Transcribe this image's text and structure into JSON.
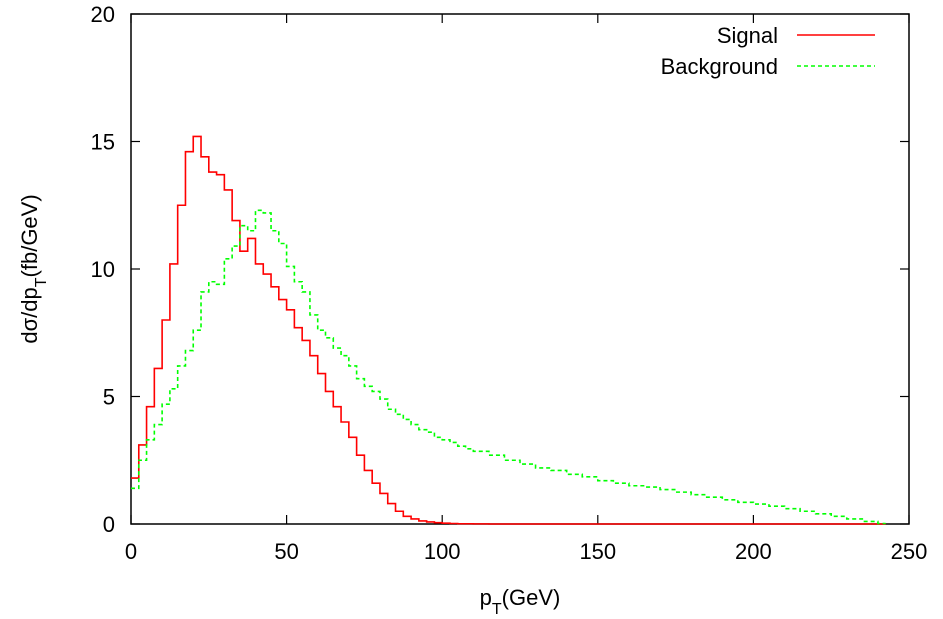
{
  "chart_data": {
    "type": "line",
    "step": true,
    "title": "",
    "xlabel": "p_T(GeV)",
    "xlabel_parts": {
      "base": "p",
      "sub": "T",
      "rest": "(GeV)"
    },
    "ylabel": "dσ/dp_T(fb/GeV)",
    "ylabel_parts": {
      "base": "dσ/dp",
      "sub": "T",
      "rest": "(fb/GeV)"
    },
    "xlim": [
      0,
      250
    ],
    "ylim": [
      0,
      20
    ],
    "xticks": [
      0,
      50,
      100,
      150,
      200,
      250
    ],
    "yticks": [
      0,
      5,
      10,
      15,
      20
    ],
    "xtick_labels": [
      "0",
      "50",
      "100",
      "150",
      "200",
      "250"
    ],
    "ytick_labels": [
      "0",
      "5",
      "10",
      "15",
      "20"
    ],
    "grid": false,
    "legend_position": "top-right",
    "bin_width": 2.5,
    "series": [
      {
        "name": "Signal",
        "color": "#ff0000",
        "dash": "solid",
        "x": [
          0,
          2.5,
          5,
          7.5,
          10,
          12.5,
          15,
          17.5,
          20,
          22.5,
          25,
          27.5,
          30,
          32.5,
          35,
          37.5,
          40,
          42.5,
          45,
          47.5,
          50,
          52.5,
          55,
          57.5,
          60,
          62.5,
          65,
          67.5,
          70,
          72.5,
          75,
          77.5,
          80,
          82.5,
          85,
          87.5,
          90,
          92.5,
          95,
          97.5,
          100,
          102.5,
          105,
          107.5,
          110,
          115,
          120,
          130,
          140,
          150,
          160,
          170,
          180,
          190,
          200,
          210,
          220,
          230,
          240
        ],
        "values": [
          1.8,
          3.1,
          4.6,
          6.1,
          8.0,
          10.2,
          12.5,
          14.6,
          15.2,
          14.4,
          13.8,
          13.7,
          13.1,
          11.9,
          10.7,
          11.2,
          10.2,
          9.8,
          9.3,
          8.8,
          8.4,
          7.7,
          7.2,
          6.6,
          5.9,
          5.2,
          4.6,
          4.0,
          3.4,
          2.7,
          2.1,
          1.6,
          1.2,
          0.8,
          0.5,
          0.3,
          0.2,
          0.12,
          0.08,
          0.05,
          0.03,
          0.02,
          0.01,
          0.01,
          0.005,
          0,
          0,
          0,
          0,
          0,
          0,
          0,
          0,
          0,
          0,
          0,
          0,
          0,
          0
        ]
      },
      {
        "name": "Background",
        "color": "#00ff00",
        "dash": "dashed",
        "x": [
          0,
          2.5,
          5,
          7.5,
          10,
          12.5,
          15,
          17.5,
          20,
          22.5,
          25,
          27.5,
          30,
          32.5,
          35,
          37.5,
          40,
          42.5,
          45,
          47.5,
          50,
          52.5,
          55,
          57.5,
          60,
          62.5,
          65,
          67.5,
          70,
          72.5,
          75,
          77.5,
          80,
          82.5,
          85,
          87.5,
          90,
          92.5,
          95,
          97.5,
          100,
          102.5,
          105,
          107.5,
          110,
          115,
          120,
          125,
          130,
          135,
          140,
          145,
          150,
          155,
          160,
          165,
          170,
          175,
          180,
          185,
          190,
          195,
          200,
          205,
          210,
          215,
          220,
          225,
          230,
          235,
          240
        ],
        "values": [
          1.4,
          2.5,
          3.3,
          3.9,
          4.7,
          5.3,
          6.2,
          6.8,
          7.6,
          9.1,
          9.5,
          9.4,
          10.4,
          10.9,
          11.7,
          11.5,
          12.3,
          12.2,
          11.5,
          11.0,
          10.1,
          9.5,
          9.1,
          8.2,
          7.6,
          7.3,
          6.9,
          6.6,
          6.2,
          5.7,
          5.4,
          5.2,
          4.9,
          4.5,
          4.3,
          4.1,
          3.9,
          3.7,
          3.6,
          3.4,
          3.3,
          3.2,
          3.05,
          2.95,
          2.85,
          2.7,
          2.5,
          2.35,
          2.2,
          2.1,
          1.95,
          1.85,
          1.7,
          1.6,
          1.5,
          1.45,
          1.35,
          1.25,
          1.15,
          1.05,
          0.95,
          0.85,
          0.78,
          0.7,
          0.6,
          0.5,
          0.4,
          0.3,
          0.2,
          0.1,
          0.02
        ]
      }
    ]
  }
}
